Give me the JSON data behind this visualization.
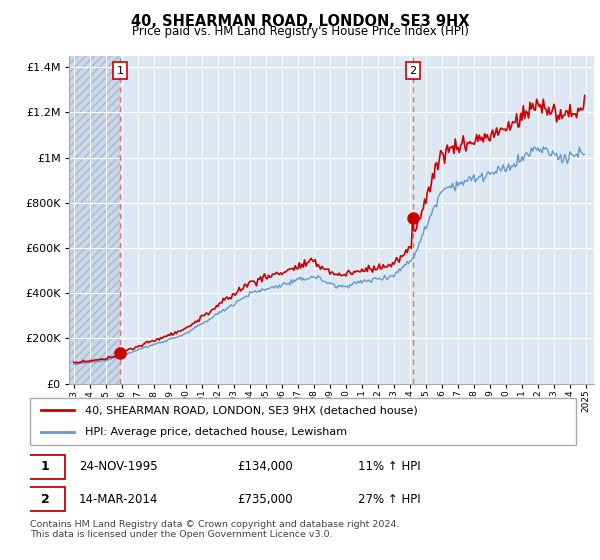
{
  "title": "40, SHEARMAN ROAD, LONDON, SE3 9HX",
  "subtitle": "Price paid vs. HM Land Registry's House Price Index (HPI)",
  "legend_label1": "40, SHEARMAN ROAD, LONDON, SE3 9HX (detached house)",
  "legend_label2": "HPI: Average price, detached house, Lewisham",
  "transaction1_date": "24-NOV-1995",
  "transaction1_price": "£134,000",
  "transaction1_hpi": "11% ↑ HPI",
  "transaction2_date": "14-MAR-2014",
  "transaction2_price": "£735,000",
  "transaction2_hpi": "27% ↑ HPI",
  "footer": "Contains HM Land Registry data © Crown copyright and database right 2024.\nThis data is licensed under the Open Government Licence v3.0.",
  "line1_color": "#cc0000",
  "line2_color": "#6699cc",
  "marker_color": "#cc0000",
  "dashed_line_color": "#e87070",
  "plot_bg_color": "#dce9f5",
  "hatch_region_color": "#c8d8e8",
  "grid_color": "#ffffff",
  "ylim": [
    0,
    1450000
  ],
  "yticks": [
    0,
    200000,
    400000,
    600000,
    800000,
    1000000,
    1200000,
    1400000
  ],
  "xlim_start": 1992.7,
  "xlim_end": 2025.5,
  "transaction1_x": 1995.9,
  "transaction1_y": 134000,
  "transaction2_x": 2014.2,
  "transaction2_y": 735000,
  "hatch_end_x": 1995.9
}
